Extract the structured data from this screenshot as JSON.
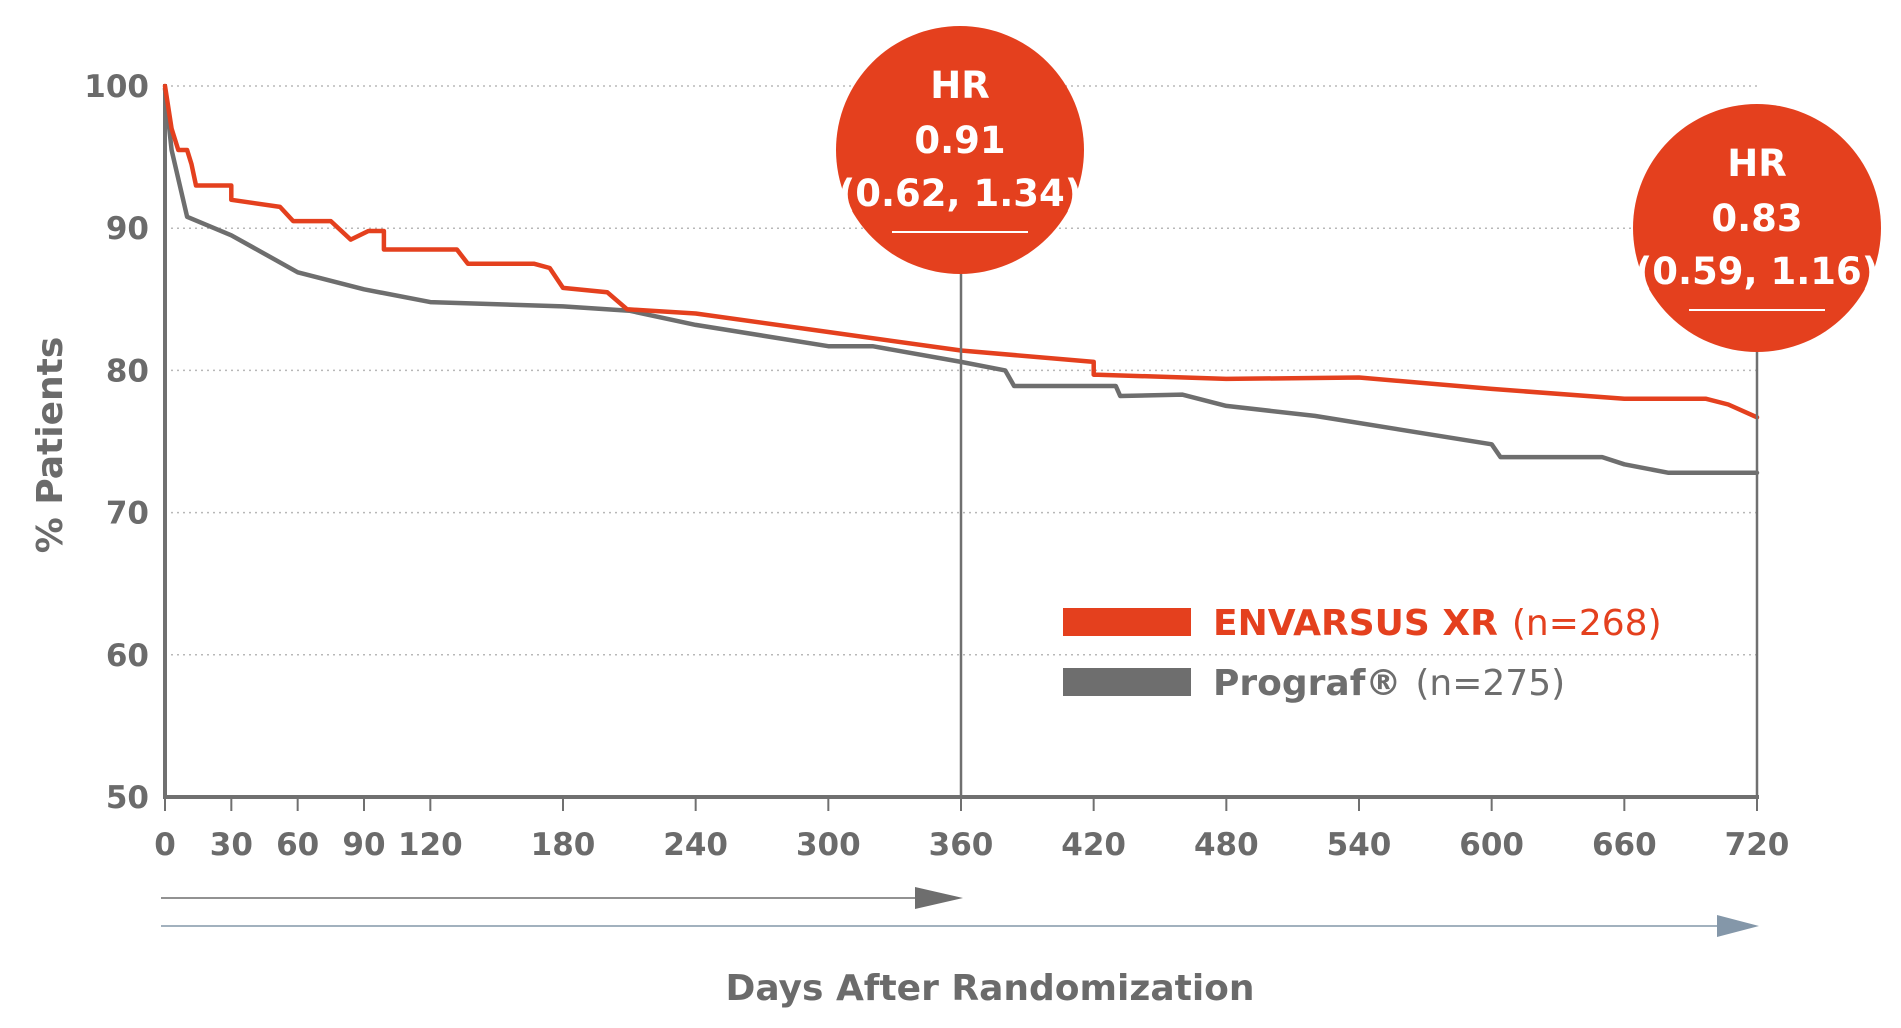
{
  "chart_data": {
    "type": "line",
    "xlabel": "Days After Randomization",
    "ylabel": "% Patients",
    "xlim": [
      0,
      720
    ],
    "ylim": [
      50,
      100
    ],
    "x_ticks": [
      0,
      30,
      60,
      90,
      120,
      180,
      240,
      300,
      360,
      420,
      480,
      540,
      600,
      660,
      720
    ],
    "y_ticks": [
      50,
      60,
      70,
      80,
      90,
      100
    ],
    "grid": "horizontal dotted",
    "legend_position": "lower-right",
    "series": [
      {
        "name": "ENVARSUS XR",
        "n_label": "(n=268)",
        "color": "#e4401e",
        "x": [
          0,
          3,
          6,
          10,
          12,
          14,
          30,
          30,
          52,
          58,
          75,
          84,
          92,
          99,
          99,
          115,
          132,
          137,
          150,
          167,
          174,
          180,
          200,
          209,
          240,
          300,
          360,
          420,
          420,
          422,
          480,
          540,
          600,
          660,
          697,
          707,
          720
        ],
        "y": [
          100,
          97,
          95.5,
          95.5,
          94.5,
          93,
          93,
          92,
          91.5,
          90.5,
          90.5,
          89.2,
          89.8,
          89.8,
          88.5,
          88.5,
          88.5,
          87.5,
          87.5,
          87.5,
          87.2,
          85.8,
          85.5,
          84.3,
          84,
          82.7,
          81.4,
          80.6,
          79.7,
          79.7,
          79.4,
          79.5,
          78.7,
          78,
          78,
          77.6,
          76.7
        ]
      },
      {
        "name": "Prograf®",
        "n_label": "(n=275)",
        "color": "#6e6e6e",
        "x": [
          0,
          3,
          10,
          30,
          60,
          90,
          120,
          180,
          210,
          240,
          300,
          320,
          360,
          380,
          384,
          400,
          430,
          432,
          460,
          480,
          520,
          600,
          604,
          650,
          660,
          680,
          720
        ],
        "y": [
          99.8,
          95.5,
          90.8,
          89.5,
          86.9,
          85.7,
          84.8,
          84.5,
          84.2,
          83.2,
          81.7,
          81.7,
          80.6,
          80,
          78.9,
          78.9,
          78.9,
          78.2,
          78.3,
          77.5,
          76.8,
          74.8,
          73.9,
          73.9,
          73.4,
          72.8,
          72.8
        ]
      }
    ],
    "annotations": [
      {
        "x": 360,
        "line1": "HR",
        "line2": "0.91",
        "line3": "(0.62, 1.34)"
      },
      {
        "x": 720,
        "line1": "HR",
        "line2": "0.83",
        "line3": "(0.59, 1.16)"
      }
    ]
  },
  "colors": {
    "accent": "#e4401e",
    "gray": "#6e6e6e",
    "axis": "#707070",
    "grid": "#b8b8b8",
    "arrow_short": "#6e6e6e",
    "arrow_long": "#8497a9"
  }
}
